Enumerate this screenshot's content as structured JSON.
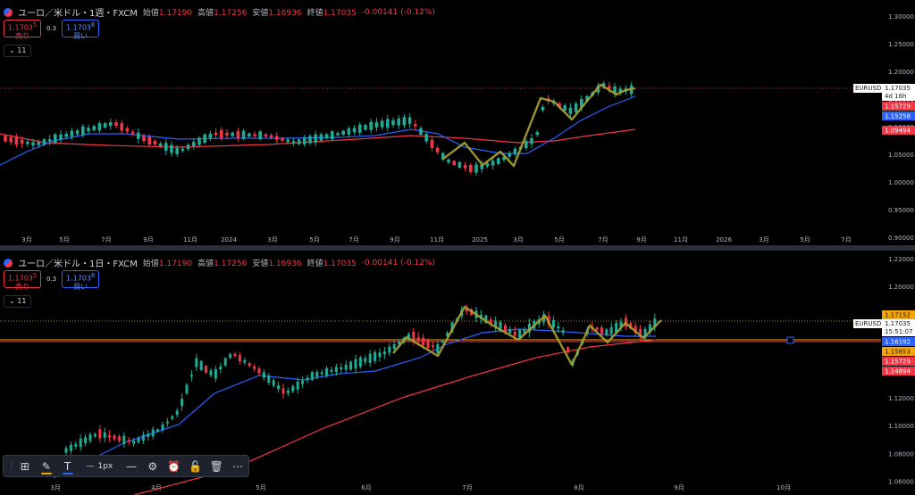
{
  "colors": {
    "background": "#000000",
    "axis_text": "#b2b5be",
    "up_candle": "#22ab94",
    "down_candle": "#f23645",
    "ma_fast": "#2962ff",
    "ma_slow": "#f23645",
    "zigzag": "#a8a232",
    "price_line": "#f7a600"
  },
  "weekly": {
    "legend": {
      "title": "ユーロ／米ドル・1週・FXCM",
      "open_key": "始値",
      "open": "1.17190",
      "high_key": "高値",
      "high": "1.17256",
      "low_key": "安値",
      "low": "1.16936",
      "close_key": "終値",
      "close": "1.17035",
      "change": "-0.00141 (-0.12%)"
    },
    "trade": {
      "sell_price": "1.1703",
      "sell_sup": "5",
      "sell_label": "売り",
      "spread": "0.3",
      "buy_price": "1.1703",
      "buy_sup": "8",
      "buy_label": "買い"
    },
    "collapse_label": "11",
    "y_ticks": [
      "1.30000",
      "1.25000",
      "1.20000",
      "1.15000",
      "1.10000",
      "1.05000",
      "1.00000",
      "0.95000",
      "0.90000"
    ],
    "x_ticks": [
      "3月",
      "5月",
      "7月",
      "9月",
      "11月",
      "2024",
      "3月",
      "5月",
      "7月",
      "9月",
      "11月",
      "2025",
      "3月",
      "5月",
      "7月",
      "9月",
      "11月",
      "2026",
      "3月",
      "5月",
      "7月"
    ],
    "symbol_label": "EURUSD",
    "price_tag": {
      "price": "1.17035",
      "countdown": "4d 16h"
    },
    "ma_tags": [
      "1.15729",
      "1.15258",
      "1.09494"
    ]
  },
  "daily": {
    "legend": {
      "title": "ユーロ／米ドル・1日・FXCM",
      "open_key": "始値",
      "open": "1.17190",
      "high_key": "高値",
      "high": "1.17256",
      "low_key": "安値",
      "low": "1.16936",
      "close_key": "終値",
      "close": "1.17035",
      "change": "-0.00141 (-0.12%)"
    },
    "trade": {
      "sell_price": "1.1703",
      "sell_sup": "5",
      "sell_label": "売り",
      "spread": "0.3",
      "buy_price": "1.1703",
      "buy_sup": "8",
      "buy_label": "買い"
    },
    "collapse_label": "11",
    "y_ticks": [
      "1.22000",
      "1.20000",
      "1.18000",
      "1.16000",
      "1.14000",
      "1.12000",
      "1.10000",
      "1.08000",
      "1.06000"
    ],
    "x_ticks": [
      "3月",
      "4月",
      "5月",
      "6月",
      "7月",
      "8月",
      "9月",
      "10月"
    ],
    "symbol_label": "EURUSD",
    "price_tag": {
      "price": "1.17035",
      "countdown": "15:51:07"
    },
    "side_tags": [
      "1.17152",
      "1.16192",
      "1.15853",
      "1.15729",
      "1.14894"
    ]
  },
  "toolbar": {
    "width_label": "1px"
  }
}
